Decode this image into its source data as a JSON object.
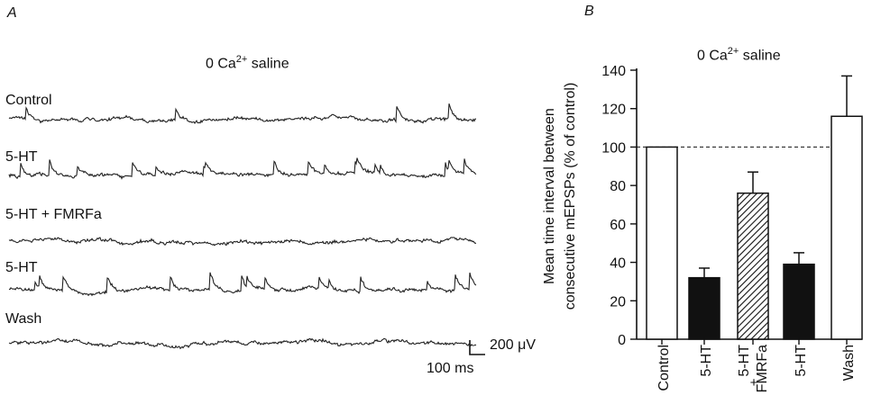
{
  "panel_a": {
    "letter": "A",
    "title_prefix": "0 Ca",
    "title_sup": "2+",
    "title_suffix": " saline",
    "traces": [
      {
        "label": "Control",
        "activity": "sparse"
      },
      {
        "label": "5-HT",
        "activity": "high"
      },
      {
        "label": "5-HT + FMRFa",
        "activity": "low"
      },
      {
        "label": "5-HT",
        "activity": "high"
      },
      {
        "label": "Wash",
        "activity": "low"
      }
    ],
    "scale_voltage": "200 μV",
    "scale_time": "100 ms"
  },
  "panel_b": {
    "letter": "B",
    "title_prefix": "0 Ca",
    "title_sup": "2+",
    "title_suffix": " saline",
    "ylabel_line1": "Mean time interval between",
    "ylabel_line2": "consecutive mEPSPs (% of control)"
  },
  "chart_data": {
    "type": "bar",
    "categories": [
      "Control",
      "5-HT",
      "5-HT + FMRFa",
      "5-HT",
      "Wash"
    ],
    "values": [
      100,
      32,
      76,
      39,
      116
    ],
    "errors": [
      0,
      5,
      11,
      6,
      21
    ],
    "fills": [
      "white",
      "black",
      "hatched",
      "black",
      "white"
    ],
    "ylim": [
      0,
      140
    ],
    "yticks": [
      0,
      20,
      40,
      60,
      80,
      100,
      120,
      140
    ],
    "reference_line": 100
  }
}
